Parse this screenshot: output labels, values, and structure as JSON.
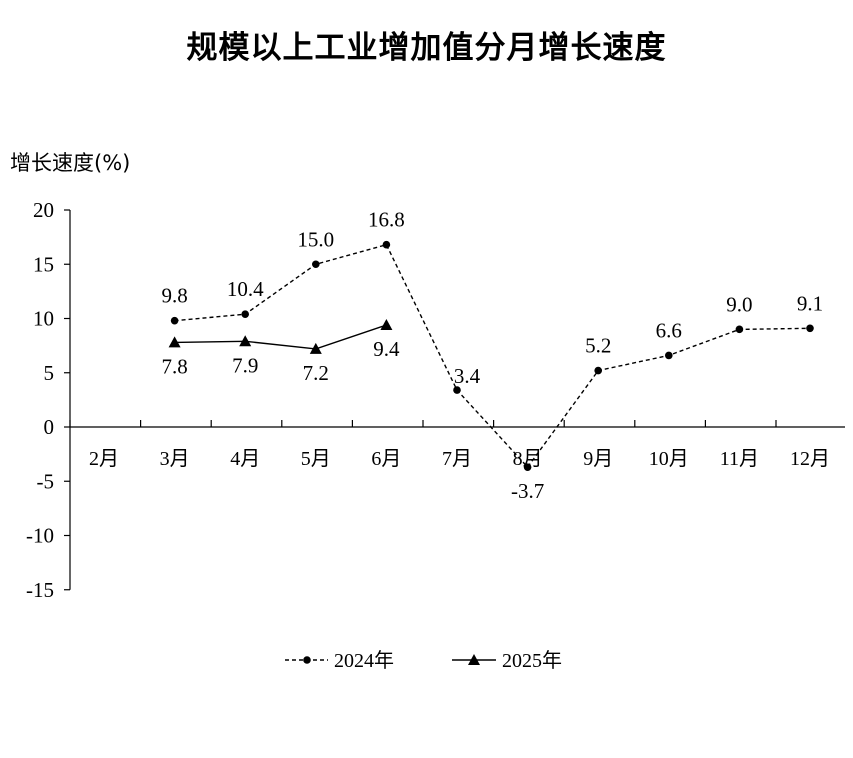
{
  "chart_data": {
    "type": "line",
    "title": "规模以上工业增加值分月增长速度",
    "ylabel": "增长速度(%)",
    "xlabel": "",
    "categories": [
      "2月",
      "3月",
      "4月",
      "5月",
      "6月",
      "7月",
      "8月",
      "9月",
      "10月",
      "11月",
      "12月"
    ],
    "ylim": [
      -15,
      20
    ],
    "yticks": [
      20,
      15,
      10,
      5,
      0,
      -5,
      -10,
      -15
    ],
    "legend_position": "bottom",
    "series": [
      {
        "name": "2024年",
        "values": [
          null,
          9.8,
          10.4,
          15.0,
          16.8,
          3.4,
          -3.7,
          5.2,
          6.6,
          9.0,
          9.1
        ],
        "labels": [
          null,
          "9.8",
          "10.4",
          "15.0",
          "16.8",
          "3.4",
          "-3.7",
          "5.2",
          "6.6",
          "9.0",
          "9.1"
        ],
        "style": "dashed",
        "marker": "circle",
        "color": "#000000"
      },
      {
        "name": "2025年",
        "values": [
          null,
          7.8,
          7.9,
          7.2,
          9.4,
          null,
          null,
          null,
          null,
          null,
          null
        ],
        "labels": [
          null,
          "7.8",
          "7.9",
          "7.2",
          "9.4",
          null,
          null,
          null,
          null,
          null,
          null
        ],
        "style": "solid",
        "marker": "triangle",
        "color": "#000000"
      }
    ]
  }
}
